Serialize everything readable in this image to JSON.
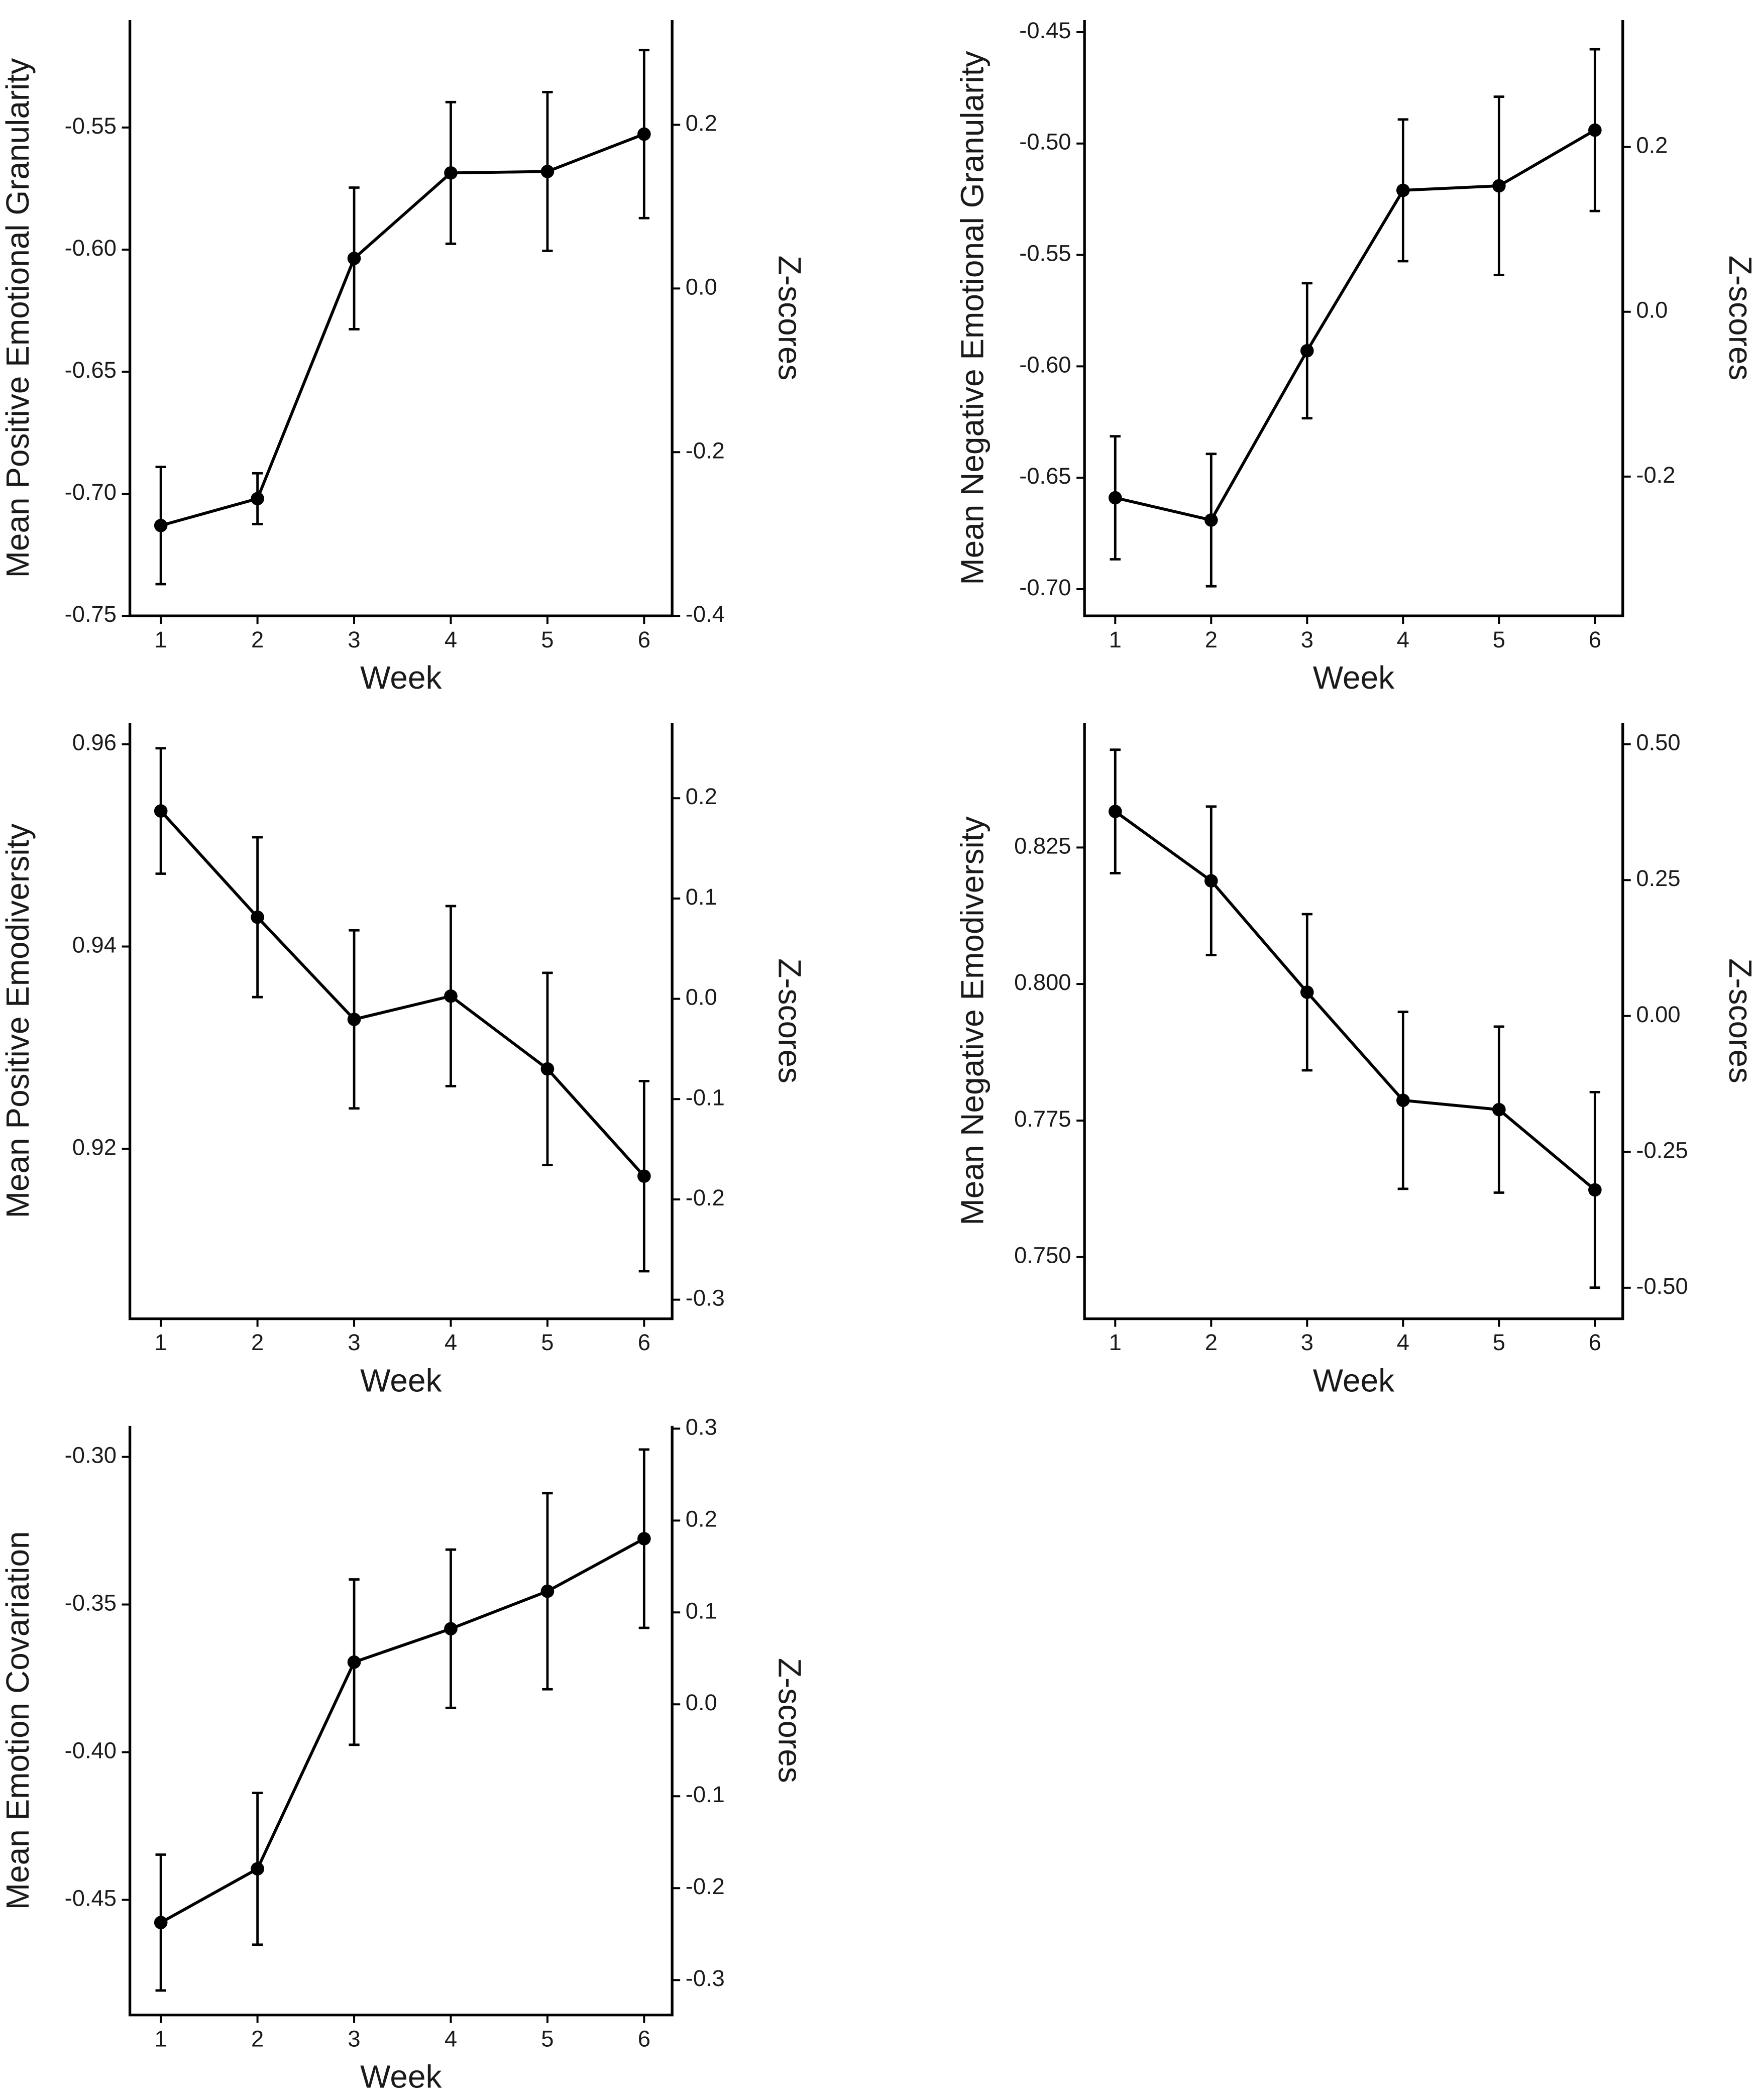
{
  "chart_data": [
    {
      "type": "line",
      "ylabel": "Mean Positive Emotional Granularity",
      "xlabel": "Week",
      "y2label": "Z-scores",
      "x": [
        1,
        2,
        3,
        4,
        5,
        6
      ],
      "values": [
        -0.713,
        -0.702,
        -0.6036,
        -0.5686,
        -0.568,
        -0.5527
      ],
      "errors": [
        0.024,
        0.0104,
        0.029,
        0.029,
        0.0325,
        0.0344
      ],
      "color": "#000000",
      "xlim": [
        0.68,
        6.29
      ],
      "xticks": [
        1,
        2,
        3,
        4,
        5,
        6
      ],
      "ylim": [
        -0.75,
        -0.506
      ],
      "yticks": [
        -0.75,
        {
          "value": -0.7,
          "label": "-0.70"
        },
        -0.65,
        {
          "value": -0.6,
          "label": "-0.60"
        },
        -0.55
      ],
      "y2lim": [
        -0.4,
        0.328
      ],
      "y2ticks": [
        -0.4,
        -0.2,
        {
          "value": 0,
          "label": "0.0"
        },
        0.2
      ]
    },
    {
      "type": "line",
      "ylabel": "Mean Negative Emotional Granularity",
      "xlabel": "Week",
      "y2label": "Z-scores",
      "x": [
        1,
        2,
        3,
        4,
        5,
        6
      ],
      "values": [
        -0.659,
        -0.669,
        -0.593,
        -0.521,
        -0.519,
        -0.494
      ],
      "errors": [
        0.0276,
        0.0297,
        0.0303,
        0.0318,
        0.04,
        0.0363
      ],
      "color": "#000000",
      "xlim": [
        0.68,
        6.29
      ],
      "xticks": [
        1,
        2,
        3,
        4,
        5,
        6
      ],
      "ylim": [
        -0.712,
        -0.4446
      ],
      "yticks": [
        {
          "value": -0.7,
          "label": "-0.70"
        },
        -0.65,
        {
          "value": -0.6,
          "label": "-0.60"
        },
        -0.55,
        {
          "value": -0.5,
          "label": "-0.50"
        },
        -0.45
      ],
      "y2lim": [
        -0.369,
        0.354
      ],
      "y2ticks": [
        -0.2,
        {
          "value": 0,
          "label": "0.0"
        },
        0.2
      ]
    },
    {
      "type": "line",
      "ylabel": "Mean Positive Emodiversity",
      "xlabel": "Week",
      "y2label": "Z-scores",
      "x": [
        1,
        2,
        3,
        4,
        5,
        6
      ],
      "values": [
        0.9534,
        0.9429,
        0.9328,
        0.9351,
        0.9279,
        0.9173
      ],
      "errors": [
        0.0062,
        0.0079,
        0.0088,
        0.0089,
        0.0095,
        0.0094
      ],
      "color": "#000000",
      "xlim": [
        0.68,
        6.29
      ],
      "xticks": [
        1,
        2,
        3,
        4,
        5,
        6
      ],
      "ylim": [
        0.9032,
        0.9621
      ],
      "yticks": [
        0.92,
        0.94,
        0.96
      ],
      "y2lim": [
        -0.319,
        0.275
      ],
      "y2ticks": [
        -0.3,
        -0.2,
        -0.1,
        {
          "value": 0,
          "label": "0.0"
        },
        0.1,
        0.2
      ]
    },
    {
      "type": "line",
      "ylabel": "Mean Negative Emodiversity",
      "xlabel": "Week",
      "y2label": "Z-scores",
      "x": [
        1,
        2,
        3,
        4,
        5,
        6
      ],
      "values": [
        0.8316,
        0.8189,
        0.7985,
        0.7787,
        0.777,
        0.7623
      ],
      "errors": [
        0.0113,
        0.0136,
        0.0143,
        0.0162,
        0.0152,
        0.0179
      ],
      "color": "#000000",
      "xlim": [
        0.68,
        6.29
      ],
      "xticks": [
        1,
        2,
        3,
        4,
        5,
        6
      ],
      "ylim": [
        0.7387,
        0.8478
      ],
      "yticks": [
        {
          "value": 0.75,
          "label": "0.750"
        },
        0.775,
        {
          "value": 0.8,
          "label": "0.800"
        },
        0.825
      ],
      "y2lim": [
        -0.557,
        0.539
      ],
      "y2ticks": [
        {
          "value": -0.5,
          "label": "-0.50"
        },
        -0.25,
        {
          "value": 0,
          "label": "0.00"
        },
        0.25,
        {
          "value": 0.5,
          "label": "0.50"
        }
      ]
    },
    {
      "type": "line",
      "ylabel": "Mean Emotion Covariation",
      "xlabel": "Week",
      "y2label": "Z-scores",
      "x": [
        1,
        2,
        3,
        4,
        5,
        6
      ],
      "values": [
        -0.4577,
        -0.4395,
        -0.3695,
        -0.3582,
        -0.3455,
        -0.3277
      ],
      "errors": [
        0.023,
        0.0257,
        0.028,
        0.0268,
        0.0332,
        0.0302
      ],
      "color": "#000000",
      "xlim": [
        0.68,
        6.29
      ],
      "xticks": [
        1,
        2,
        3,
        4,
        5,
        6
      ],
      "ylim": [
        -0.489,
        -0.2895
      ],
      "yticks": [
        -0.45,
        {
          "value": -0.4,
          "label": "-0.40"
        },
        -0.35,
        {
          "value": -0.3,
          "label": "-0.30"
        }
      ],
      "y2lim": [
        -0.338,
        0.303
      ],
      "y2ticks": [
        -0.3,
        -0.2,
        -0.1,
        {
          "value": 0,
          "label": "0.0"
        },
        0.1,
        0.2,
        0.3
      ]
    }
  ]
}
